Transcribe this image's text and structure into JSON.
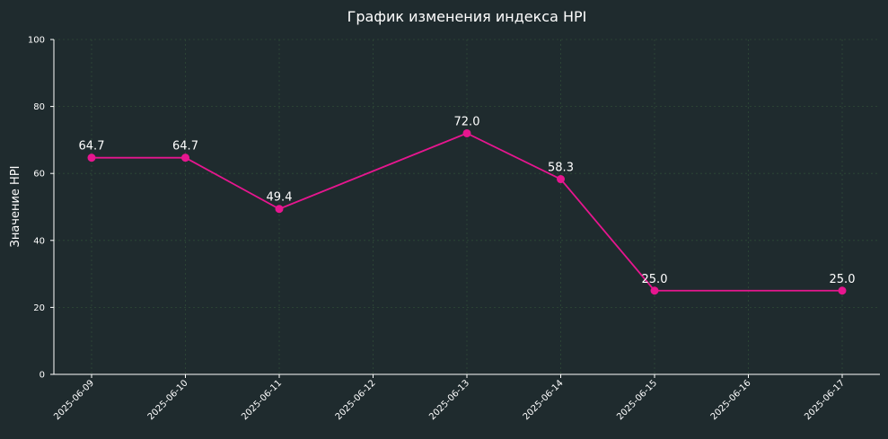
{
  "chart_data": {
    "type": "line",
    "title": "График изменения индекса HPI",
    "xlabel": "",
    "ylabel": "Значение HPI",
    "x_ticks": [
      "2025-06-09",
      "2025-06-10",
      "2025-06-11",
      "2025-06-12",
      "2025-06-13",
      "2025-06-14",
      "2025-06-15",
      "2025-06-16",
      "2025-06-17"
    ],
    "y_ticks": [
      "0",
      "20",
      "40",
      "60",
      "80",
      "100"
    ],
    "ylim": [
      0,
      100
    ],
    "grid": true,
    "series": [
      {
        "color": "#e6168f",
        "x": [
          "2025-06-09",
          "2025-06-10",
          "2025-06-11",
          "2025-06-13",
          "2025-06-14",
          "2025-06-15",
          "2025-06-17"
        ],
        "y": [
          64.7,
          64.7,
          49.4,
          72.0,
          58.3,
          25.0,
          25.0
        ],
        "labels": [
          "64.7",
          "64.7",
          "49.4",
          "72.0",
          "58.3",
          "25.0",
          "25.0"
        ]
      }
    ]
  },
  "colors": {
    "background": "#1f2b2e",
    "text": "#ffffff",
    "grid": "#2f4a37",
    "series": "#e6168f"
  }
}
